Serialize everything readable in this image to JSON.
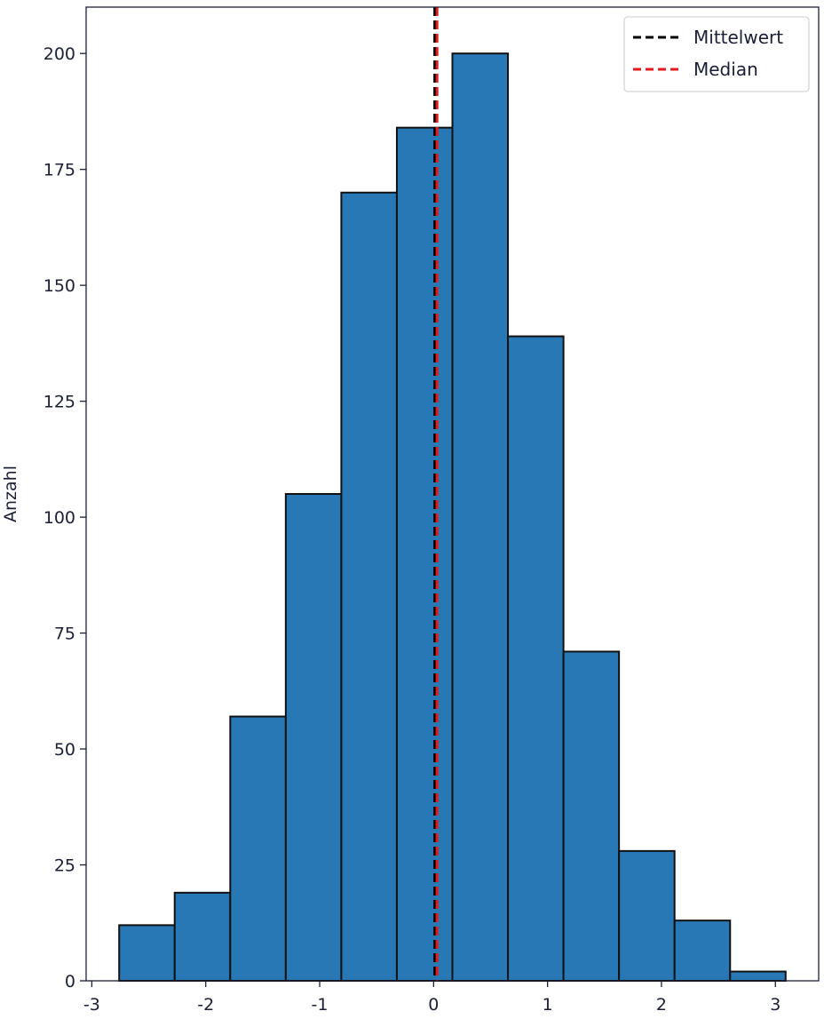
{
  "chart_data": {
    "type": "bar",
    "subtype": "histogram",
    "title": "",
    "xlabel": "",
    "ylabel": "Anzahl",
    "bin_edges": [
      -2.76,
      -2.2725,
      -1.785,
      -1.2975,
      -0.81,
      -0.3225,
      0.165,
      0.6525,
      1.14,
      1.6275,
      2.115,
      2.6025,
      3.09
    ],
    "values": [
      12,
      19,
      57,
      105,
      170,
      184,
      200,
      139,
      71,
      28,
      13,
      2
    ],
    "xlim": [
      -3.05,
      3.38
    ],
    "ylim": [
      0,
      210
    ],
    "xticks": [
      "-3",
      "-2",
      "-1",
      "0",
      "1",
      "2",
      "3"
    ],
    "yticks": [
      "0",
      "25",
      "50",
      "75",
      "100",
      "125",
      "150",
      "175",
      "200"
    ],
    "grid": false,
    "bar_color": "#2878b5",
    "edge_color": "#111111",
    "vlines": [
      {
        "name": "Mittelwert",
        "x": 0.01,
        "color": "#000000",
        "style": "dashed"
      },
      {
        "name": "Median",
        "x": 0.03,
        "color": "#e41a1c",
        "style": "dashed"
      }
    ],
    "legend_placement": "top-right"
  }
}
